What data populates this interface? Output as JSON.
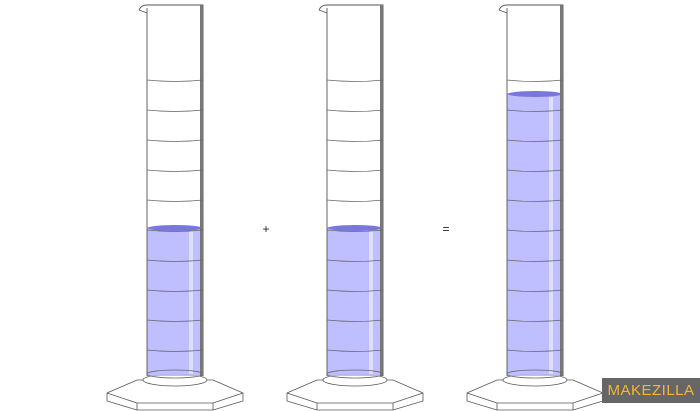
{
  "operators": {
    "plus": "+",
    "equals": "="
  },
  "watermark": "MAKEZILLA"
}
